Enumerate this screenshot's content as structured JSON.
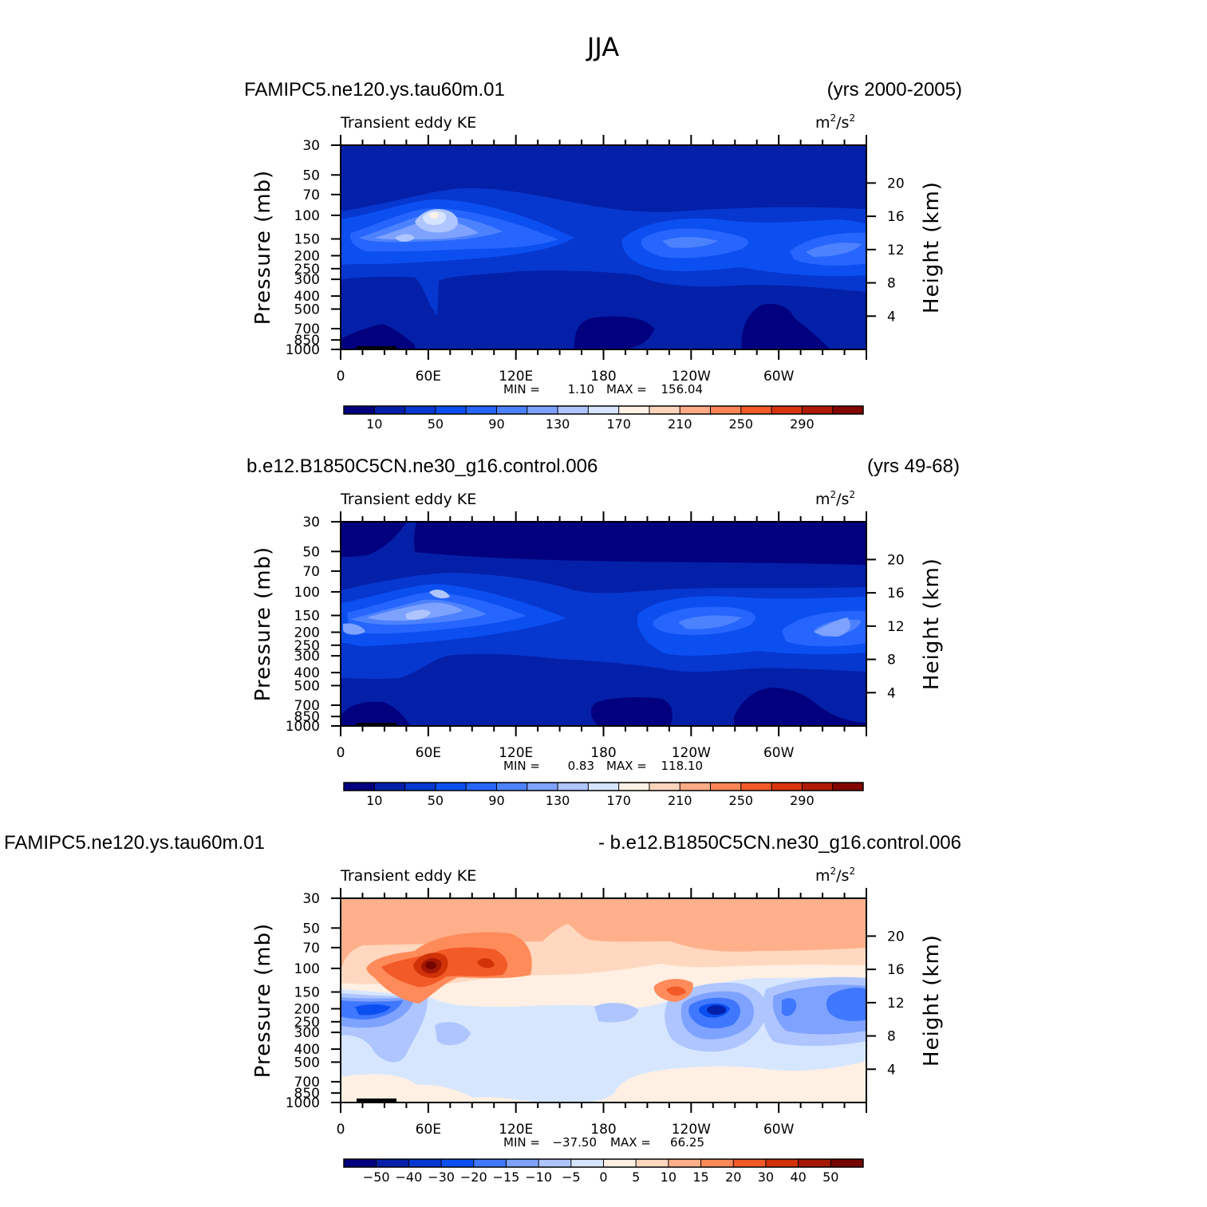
{
  "figure_title": "JJA",
  "colors": {
    "seq": [
      "#03007f",
      "#0420a8",
      "#0637cf",
      "#0b4ff1",
      "#2666ff",
      "#4d82ff",
      "#7ea2ff",
      "#aec5ff",
      "#d6e4ff",
      "#fff1e6",
      "#ffd4bd",
      "#ffab85",
      "#ff8555",
      "#f25a28",
      "#d8340d",
      "#b01b05",
      "#830600"
    ],
    "div": [
      "#03007f",
      "#0420a8",
      "#0637cf",
      "#0b4ff1",
      "#3f78ff",
      "#7ea2ff",
      "#aec5ff",
      "#d6e6ff",
      "#fff0e3",
      "#ffd8bf",
      "#ffb08a",
      "#ff8a5a",
      "#f25a28",
      "#d13208",
      "#a41703",
      "#760500"
    ]
  },
  "panels": [
    {
      "name": "panel-1",
      "case_label": "FAMIPC5.ne120.ys.tau60m.01",
      "years_label": "(yrs 2000-2005)",
      "stats": {
        "min_label": "MIN =",
        "min": "1.10",
        "max_label": "MAX =",
        "max": "156.04"
      }
    },
    {
      "name": "panel-2",
      "case_label": "b.e12.B1850C5CN.ne30_g16.control.006",
      "years_label": "(yrs 49-68)",
      "stats": {
        "min_label": "MIN =",
        "min": "0.83",
        "max_label": "MAX =",
        "max": "118.10"
      }
    },
    {
      "name": "panel-3",
      "case_label": "FAMIPC5.ne120.ys.tau60m.01",
      "years_label": "- b.e12.B1850C5CN.ne30_g16.control.006",
      "stats": {
        "min_label": "MIN =",
        "min": "−37.50",
        "max_label": "MAX =",
        "max": "66.25"
      }
    }
  ],
  "chart_data": [
    {
      "type": "heatmap",
      "title": "Transient eddy KE",
      "units": "m2/s2",
      "xlabel": "",
      "ylabel": "Pressure (mb)",
      "ylabel_right": "Height (km)",
      "x_range": [
        0,
        360
      ],
      "y_range_mb": [
        1000,
        30
      ],
      "x_ticks": [
        {
          "v": 0,
          "l": "0"
        },
        {
          "v": 60,
          "l": "60E"
        },
        {
          "v": 120,
          "l": "120E"
        },
        {
          "v": 180,
          "l": "180"
        },
        {
          "v": 240,
          "l": "120W"
        },
        {
          "v": 300,
          "l": "60W"
        }
      ],
      "y_ticks": [
        30,
        50,
        70,
        100,
        150,
        200,
        250,
        300,
        400,
        500,
        700,
        850,
        1000
      ],
      "y2_ticks_km": [
        20,
        16,
        12,
        8,
        4
      ],
      "colorbar_levels": [
        10,
        20,
        30,
        40,
        50,
        60,
        70,
        80,
        90,
        100,
        110,
        120,
        130,
        140,
        150,
        160,
        170,
        180,
        190,
        200,
        210,
        220,
        230,
        240,
        250,
        260,
        270,
        280,
        290,
        300
      ],
      "colorbar_labels": [
        "10",
        "50",
        "90",
        "130",
        "170",
        "210",
        "250",
        "290"
      ],
      "min": 1.1,
      "max": 156.04,
      "features": [
        {
          "lon": 60,
          "p": 100,
          "value": 150
        },
        {
          "lon": 45,
          "p": 150,
          "value": 130
        },
        {
          "lon": 90,
          "p": 150,
          "value": 90
        },
        {
          "lon": 220,
          "p": 170,
          "value": 70
        },
        {
          "lon": 340,
          "p": 200,
          "value": 70
        }
      ]
    },
    {
      "type": "heatmap",
      "title": "Transient eddy KE",
      "units": "m2/s2",
      "xlabel": "",
      "ylabel": "Pressure (mb)",
      "ylabel_right": "Height (km)",
      "x_range": [
        0,
        360
      ],
      "y_range_mb": [
        1000,
        30
      ],
      "x_ticks": [
        {
          "v": 0,
          "l": "0"
        },
        {
          "v": 60,
          "l": "60E"
        },
        {
          "v": 120,
          "l": "120E"
        },
        {
          "v": 180,
          "l": "180"
        },
        {
          "v": 240,
          "l": "120W"
        },
        {
          "v": 300,
          "l": "60W"
        }
      ],
      "y_ticks": [
        30,
        50,
        70,
        100,
        150,
        200,
        250,
        300,
        400,
        500,
        700,
        850,
        1000
      ],
      "y2_ticks_km": [
        20,
        16,
        12,
        8,
        4
      ],
      "colorbar_levels": [
        10,
        20,
        30,
        40,
        50,
        60,
        70,
        80,
        90,
        100,
        110,
        120,
        130,
        140,
        150,
        160,
        170,
        180,
        190,
        200,
        210,
        220,
        230,
        240,
        250,
        260,
        270,
        280,
        290,
        300
      ],
      "colorbar_labels": [
        "10",
        "50",
        "90",
        "130",
        "170",
        "210",
        "250",
        "290"
      ],
      "min": 0.83,
      "max": 118.1,
      "features": [
        {
          "lon": 50,
          "p": 120,
          "value": 110
        },
        {
          "lon": 20,
          "p": 190,
          "value": 90
        },
        {
          "lon": 250,
          "p": 170,
          "value": 80
        },
        {
          "lon": 345,
          "p": 200,
          "value": 80
        }
      ]
    },
    {
      "type": "heatmap",
      "title": "Transient eddy KE",
      "units": "m2/s2",
      "xlabel": "",
      "ylabel": "Pressure (mb)",
      "ylabel_right": "Height (km)",
      "x_range": [
        0,
        360
      ],
      "y_range_mb": [
        1000,
        30
      ],
      "x_ticks": [
        {
          "v": 0,
          "l": "0"
        },
        {
          "v": 60,
          "l": "60E"
        },
        {
          "v": 120,
          "l": "120E"
        },
        {
          "v": 180,
          "l": "180"
        },
        {
          "v": 240,
          "l": "120W"
        },
        {
          "v": 300,
          "l": "60W"
        }
      ],
      "y_ticks": [
        30,
        50,
        70,
        100,
        150,
        200,
        250,
        300,
        400,
        500,
        700,
        850,
        1000
      ],
      "y2_ticks_km": [
        20,
        16,
        12,
        8,
        4
      ],
      "colorbar_levels": [
        -60,
        -50,
        -40,
        -30,
        -20,
        -15,
        -10,
        -5,
        0,
        5,
        10,
        15,
        20,
        30,
        40,
        50,
        60
      ],
      "colorbar_labels": [
        "−50",
        "−40",
        "−30",
        "−20",
        "−15",
        "−10",
        "−5",
        "0",
        "5",
        "10",
        "15",
        "20",
        "30",
        "40",
        "50"
      ],
      "min": -37.5,
      "max": 66.25,
      "features": [
        {
          "lon": 62,
          "p": 100,
          "value": 66
        },
        {
          "lon": 100,
          "p": 100,
          "value": 30
        },
        {
          "lon": 230,
          "p": 150,
          "value": 20
        },
        {
          "lon": 260,
          "p": 200,
          "value": -37
        },
        {
          "lon": 345,
          "p": 180,
          "value": -25
        },
        {
          "lon": 20,
          "p": 200,
          "value": -30
        }
      ]
    }
  ]
}
